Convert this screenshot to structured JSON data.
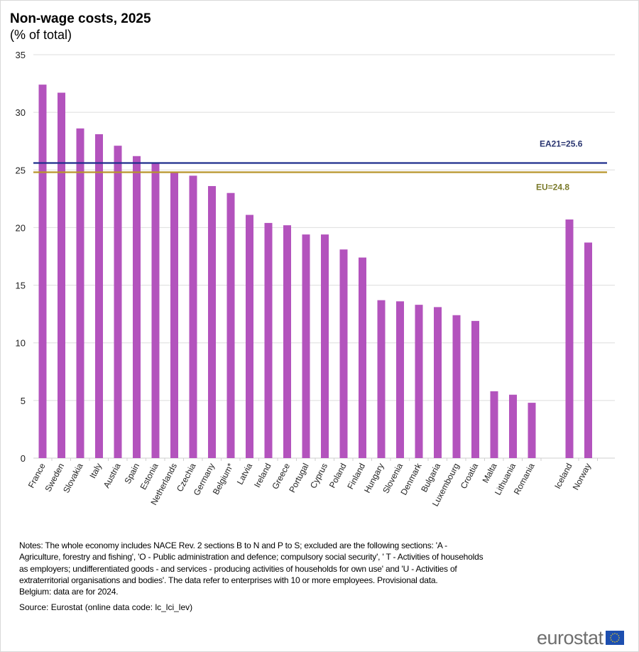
{
  "chart_data": {
    "type": "bar",
    "title": "Non-wage costs, 2025",
    "subtitle": "(% of total)",
    "xlabel": "",
    "ylabel": "",
    "ylim": [
      0,
      35
    ],
    "yticks": [
      "0",
      "5",
      "10",
      "15",
      "20",
      "25",
      "30",
      "35"
    ],
    "grid": true,
    "categories": [
      "France",
      "Sweden",
      "Slovakia",
      "Italy",
      "Austria",
      "Spain",
      "Estonia",
      "Netherlands",
      "Czechia",
      "Germany",
      "Belgium*",
      "Latvia",
      "Ireland",
      "Greece",
      "Portugal",
      "Cyprus",
      "Poland",
      "Finland",
      "Hungary",
      "Slovenia",
      "Denmark",
      "Bulgaria",
      "Luxembourg",
      "Croatia",
      "Malta",
      "Lithuania",
      "Romania",
      "Iceland",
      "Norway"
    ],
    "values": [
      32.4,
      31.7,
      28.6,
      28.1,
      27.1,
      26.2,
      25.6,
      24.8,
      24.5,
      23.6,
      23.0,
      21.1,
      20.4,
      20.2,
      19.4,
      19.4,
      18.1,
      17.4,
      13.7,
      13.6,
      13.3,
      13.1,
      12.4,
      11.9,
      5.8,
      5.5,
      4.8,
      20.7,
      18.7
    ],
    "gap_before": "Iceland",
    "bar_color": "#b353bd",
    "reference_lines": [
      {
        "name": "EA21",
        "label": "EA21=25.6",
        "value": 25.6,
        "color": "#1f2e8c",
        "label_color": "#2a3570"
      },
      {
        "name": "EU",
        "label": "EU=24.8",
        "value": 24.8,
        "color": "#b8952b",
        "label_color": "#7a7a2a"
      }
    ]
  },
  "notes": [
    "Notes: The whole economy includes NACE Rev. 2 sections B to N and P to S; excluded are the following sections: 'A -",
    "Agriculture, forestry and fishing', 'O - Public administration and defence; compulsory social security', ' T - Activities of households",
    "as employers; undifferentiated goods - and services - producing activities of households for own use' and 'U - Activities of",
    "extraterritorial organisations and bodies'. The data refer to enterprises with 10 or more employees. Provisional data.",
    "Belgium: data are for 2024."
  ],
  "source": "Source: Eurostat (online data code: lc_lci_lev)",
  "logo": "eurostat"
}
